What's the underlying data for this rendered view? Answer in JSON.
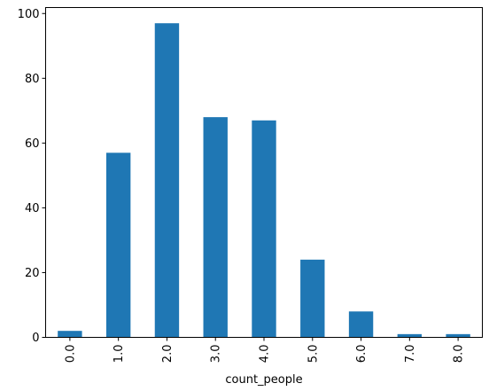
{
  "chart_data": {
    "type": "bar",
    "title": "",
    "xlabel": "count_people",
    "ylabel": "",
    "categories": [
      "0.0",
      "1.0",
      "2.0",
      "3.0",
      "4.0",
      "5.0",
      "6.0",
      "7.0",
      "8.0"
    ],
    "values": [
      2,
      57,
      97,
      68,
      67,
      24,
      8,
      1,
      1
    ],
    "ylim": [
      0,
      101.85
    ],
    "yticks": [
      0,
      20,
      40,
      60,
      80,
      100
    ],
    "bar_color": "#1f77b4",
    "grid": false,
    "legend": "none"
  }
}
